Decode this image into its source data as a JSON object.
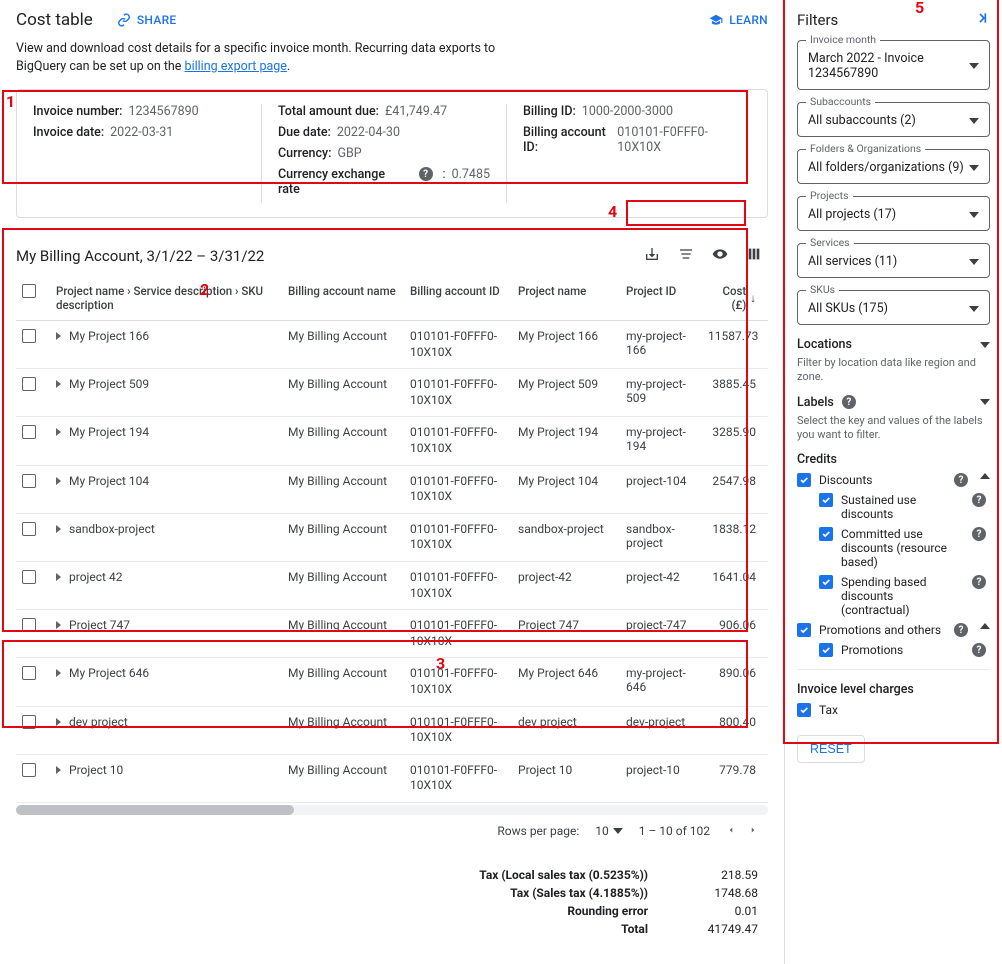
{
  "header": {
    "title": "Cost table",
    "share_label": "SHARE",
    "learn_label": "LEARN"
  },
  "intro": {
    "line1": "View and download cost details for a specific invoice month. Recurring data exports to",
    "line2_prefix": "BigQuery can be set up on the ",
    "link_text": "billing export page",
    "suffix": "."
  },
  "summary": {
    "col1": [
      {
        "label": "Invoice number:",
        "value": "1234567890"
      },
      {
        "label": "Invoice date:",
        "value": "2022-03-31"
      }
    ],
    "col2": [
      {
        "label": "Total amount due:",
        "value": "£41,749.47"
      },
      {
        "label": "Due date:",
        "value": "2022-04-30"
      },
      {
        "label": "Currency:",
        "value": "GBP"
      },
      {
        "label": "Currency exchange rate",
        "value": "0.7485",
        "has_help": true
      }
    ],
    "col3": [
      {
        "label": "Billing ID:",
        "value": "1000-2000-3000"
      },
      {
        "label": "Billing account ID:",
        "value": "010101-F0FFF0-10X10X"
      }
    ]
  },
  "account_title": "My Billing Account, 3/1/22 – 3/31/22",
  "table": {
    "columns": [
      "",
      "Project name › Service description › SKU description",
      "Billing account name",
      "Billing account ID",
      "Project name",
      "Project ID",
      "Cost (£)"
    ],
    "sort_col": 6,
    "rows": [
      {
        "proj": "My Project 166",
        "acct": "My Billing Account",
        "biid": "010101-F0FFF0-10X10X",
        "pname": "My Project 166",
        "pid": "my-project-166",
        "cost": "11587.73"
      },
      {
        "proj": "My Project 509",
        "acct": "My Billing Account",
        "biid": "010101-F0FFF0-10X10X",
        "pname": "My Project 509",
        "pid": "my-project-509",
        "cost": "3885.45"
      },
      {
        "proj": "My Project 194",
        "acct": "My Billing Account",
        "biid": "010101-F0FFF0-10X10X",
        "pname": "My Project 194",
        "pid": "my-project-194",
        "cost": "3285.90"
      },
      {
        "proj": "My Project 104",
        "acct": "My Billing Account",
        "biid": "010101-F0FFF0-10X10X",
        "pname": "My Project 104",
        "pid": "project-104",
        "cost": "2547.98"
      },
      {
        "proj": "sandbox-project",
        "acct": "My Billing Account",
        "biid": "010101-F0FFF0-10X10X",
        "pname": "sandbox-project",
        "pid": "sandbox-project",
        "cost": "1838.12"
      },
      {
        "proj": "project 42",
        "acct": "My Billing Account",
        "biid": "010101-F0FFF0-10X10X",
        "pname": "project-42",
        "pid": "project-42",
        "cost": "1641.04"
      },
      {
        "proj": "Project 747",
        "acct": "My Billing Account",
        "biid": "010101-F0FFF0-10X10X",
        "pname": "Project 747",
        "pid": "project-747",
        "cost": "906.06"
      },
      {
        "proj": "My Project 646",
        "acct": "My Billing Account",
        "biid": "010101-F0FFF0-10X10X",
        "pname": "My Project 646",
        "pid": "my-project-646",
        "cost": "890.06"
      },
      {
        "proj": "dev project",
        "acct": "My Billing Account",
        "biid": "010101-F0FFF0-10X10X",
        "pname": "dev project",
        "pid": "dev-project",
        "cost": "800.40"
      },
      {
        "proj": "Project 10",
        "acct": "My Billing Account",
        "biid": "010101-F0FFF0-10X10X",
        "pname": "Project 10",
        "pid": "project-10",
        "cost": "779.78"
      }
    ],
    "pager": {
      "rpp_label": "Rows per page:",
      "rpp_value": "10",
      "range": "1 – 10 of 102"
    }
  },
  "totals": [
    {
      "label": "Tax (Local sales tax (0.5235%))",
      "value": "218.59"
    },
    {
      "label": "Tax (Sales tax (4.1885%))",
      "value": "1748.68"
    },
    {
      "label": "Rounding error",
      "value": "0.01"
    },
    {
      "label": "Total",
      "value": "41749.47"
    }
  ],
  "filters": {
    "title": "Filters",
    "boxes": [
      {
        "legend": "Invoice month",
        "value": "March 2022 - Invoice 1234567890"
      },
      {
        "legend": "Subaccounts",
        "value": "All subaccounts (2)"
      },
      {
        "legend": "Folders & Organizations",
        "value": "All folders/organizations (9)"
      },
      {
        "legend": "Projects",
        "value": "All projects (17)"
      },
      {
        "legend": "Services",
        "value": "All services (11)"
      },
      {
        "legend": "SKUs",
        "value": "All SKUs (175)"
      }
    ],
    "locations": {
      "title": "Locations",
      "desc": "Filter by location data like region and zone."
    },
    "labels": {
      "title": "Labels",
      "desc": "Select the key and values of the labels you want to filter."
    },
    "credits": {
      "title": "Credits",
      "discounts": {
        "label": "Discounts",
        "items": [
          "Sustained use discounts",
          "Committed use discounts (resource based)",
          "Spending based discounts (contractual)"
        ]
      },
      "promotions": {
        "label": "Promotions and others",
        "items": [
          "Promotions"
        ]
      }
    },
    "invoice_level": {
      "title": "Invoice level charges",
      "items": [
        "Tax"
      ]
    },
    "reset_label": "RESET"
  },
  "annotations": {
    "n1": "1",
    "n2": "2",
    "n3": "3",
    "n4": "4",
    "n5": "5"
  }
}
